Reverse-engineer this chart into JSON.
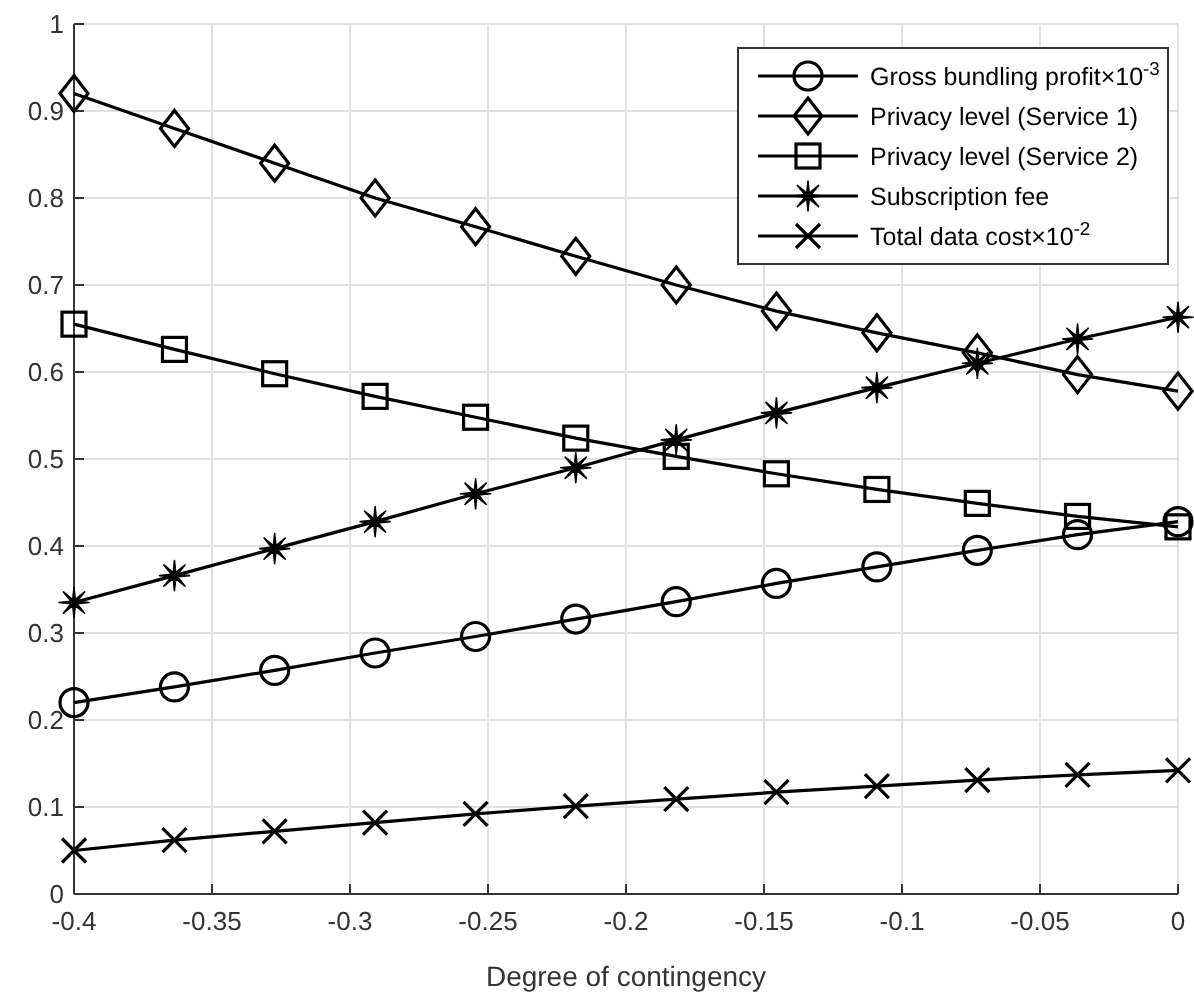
{
  "chart_data": {
    "type": "line",
    "xlabel": "Degree of contingency",
    "x": [
      -0.4,
      -0.3636,
      -0.3273,
      -0.2909,
      -0.2545,
      -0.2182,
      -0.1818,
      -0.1455,
      -0.1091,
      -0.0727,
      -0.0364,
      0
    ],
    "series": [
      {
        "name": "Gross bundling profit×10$^{-3}$",
        "color": "#000000",
        "marker": "circle",
        "values": [
          0.22,
          0.238,
          0.257,
          0.277,
          0.296,
          0.316,
          0.336,
          0.357,
          0.376,
          0.395,
          0.413,
          0.428
        ]
      },
      {
        "name": "Privacy level (Service 1)",
        "color": "#000000",
        "marker": "diamond",
        "values": [
          0.92,
          0.88,
          0.84,
          0.8,
          0.767,
          0.733,
          0.7,
          0.67,
          0.645,
          0.622,
          0.597,
          0.578
        ]
      },
      {
        "name": "Privacy level (Service 2)",
        "color": "#000000",
        "marker": "square",
        "values": [
          0.655,
          0.626,
          0.598,
          0.572,
          0.548,
          0.524,
          0.503,
          0.483,
          0.465,
          0.449,
          0.434,
          0.422
        ]
      },
      {
        "name": "Subscription fee",
        "color": "#000000",
        "marker": "star",
        "values": [
          0.335,
          0.366,
          0.397,
          0.428,
          0.46,
          0.49,
          0.522,
          0.553,
          0.582,
          0.61,
          0.638,
          0.663
        ]
      },
      {
        "name": "Total data cost×10$^{-2}$",
        "color": "#000000",
        "marker": "cross",
        "values": [
          0.05,
          0.062,
          0.072,
          0.082,
          0.092,
          0.101,
          0.109,
          0.117,
          0.124,
          0.131,
          0.137,
          0.142
        ]
      }
    ],
    "xlim": [
      -0.4,
      0
    ],
    "xticks": [
      -0.4,
      -0.35,
      -0.3,
      -0.25,
      -0.2,
      -0.15,
      -0.1,
      -0.05,
      0
    ],
    "ylim": [
      0,
      1
    ],
    "yticks": [
      0,
      0.1,
      0.2,
      0.3,
      0.4,
      0.5,
      0.6,
      0.7,
      0.8,
      0.9,
      1
    ],
    "grid": true,
    "legend": "top right",
    "line_style": "solid"
  }
}
